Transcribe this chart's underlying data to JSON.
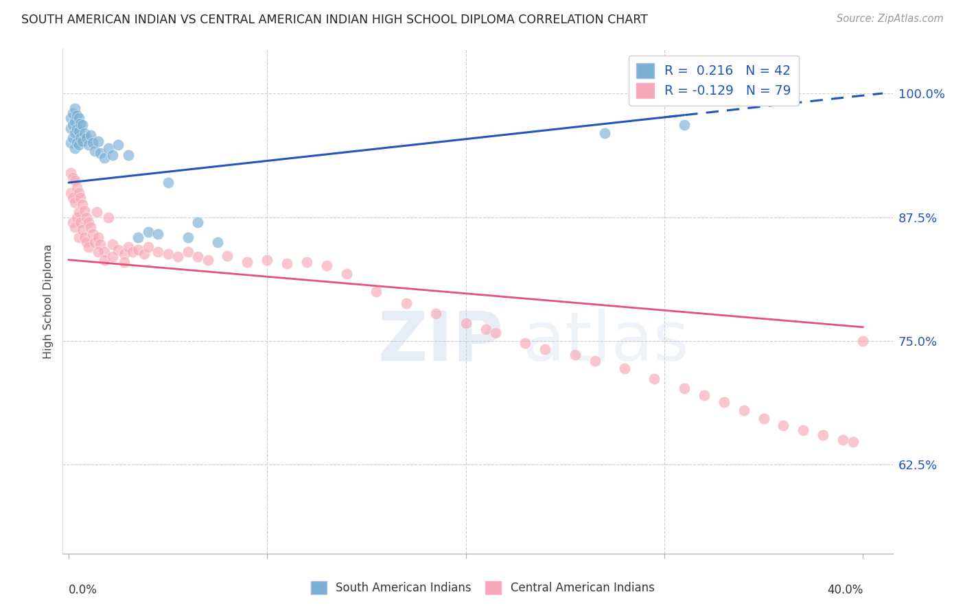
{
  "title": "SOUTH AMERICAN INDIAN VS CENTRAL AMERICAN INDIAN HIGH SCHOOL DIPLOMA CORRELATION CHART",
  "source": "Source: ZipAtlas.com",
  "ylabel": "High School Diploma",
  "yaxis_ticks": [
    0.625,
    0.75,
    0.875,
    1.0
  ],
  "yaxis_labels": [
    "62.5%",
    "75.0%",
    "87.5%",
    "100.0%"
  ],
  "xlim": [
    -0.003,
    0.415
  ],
  "ylim": [
    0.535,
    1.045
  ],
  "blue_color": "#7aafd4",
  "pink_color": "#f7a8b8",
  "blue_line_color": "#2255bb",
  "pink_line_color": "#e8507a",
  "blue_scatter_edge": "#5588bb",
  "pink_scatter_edge": "#e07090",
  "blue_line_intercept": 0.91,
  "blue_line_slope": 0.22,
  "pink_line_intercept": 0.832,
  "pink_line_slope": -0.17,
  "south_american_x": [
    0.001,
    0.001,
    0.001,
    0.002,
    0.002,
    0.002,
    0.003,
    0.003,
    0.003,
    0.003,
    0.004,
    0.004,
    0.004,
    0.005,
    0.005,
    0.005,
    0.006,
    0.006,
    0.007,
    0.007,
    0.008,
    0.009,
    0.01,
    0.011,
    0.012,
    0.013,
    0.015,
    0.016,
    0.018,
    0.02,
    0.022,
    0.025,
    0.03,
    0.035,
    0.04,
    0.045,
    0.05,
    0.06,
    0.065,
    0.075,
    0.27,
    0.31
  ],
  "south_american_y": [
    0.975,
    0.965,
    0.95,
    0.98,
    0.968,
    0.955,
    0.985,
    0.972,
    0.96,
    0.945,
    0.978,
    0.964,
    0.95,
    0.975,
    0.962,
    0.948,
    0.97,
    0.955,
    0.968,
    0.952,
    0.96,
    0.955,
    0.948,
    0.958,
    0.95,
    0.942,
    0.952,
    0.94,
    0.935,
    0.945,
    0.938,
    0.948,
    0.938,
    0.855,
    0.86,
    0.858,
    0.91,
    0.855,
    0.87,
    0.85,
    0.96,
    0.968
  ],
  "central_american_x": [
    0.001,
    0.001,
    0.002,
    0.002,
    0.002,
    0.003,
    0.003,
    0.003,
    0.004,
    0.004,
    0.005,
    0.005,
    0.005,
    0.006,
    0.006,
    0.007,
    0.007,
    0.008,
    0.008,
    0.009,
    0.009,
    0.01,
    0.01,
    0.011,
    0.012,
    0.013,
    0.014,
    0.015,
    0.016,
    0.018,
    0.02,
    0.022,
    0.025,
    0.028,
    0.03,
    0.032,
    0.035,
    0.038,
    0.04,
    0.045,
    0.05,
    0.055,
    0.06,
    0.065,
    0.07,
    0.08,
    0.09,
    0.1,
    0.11,
    0.12,
    0.13,
    0.14,
    0.155,
    0.17,
    0.185,
    0.2,
    0.21,
    0.215,
    0.23,
    0.24,
    0.255,
    0.265,
    0.28,
    0.295,
    0.31,
    0.32,
    0.33,
    0.34,
    0.35,
    0.36,
    0.37,
    0.38,
    0.39,
    0.395,
    0.4,
    0.015,
    0.018,
    0.022,
    0.028
  ],
  "central_american_y": [
    0.92,
    0.9,
    0.915,
    0.895,
    0.87,
    0.912,
    0.89,
    0.865,
    0.905,
    0.875,
    0.9,
    0.88,
    0.855,
    0.895,
    0.87,
    0.888,
    0.862,
    0.882,
    0.855,
    0.875,
    0.85,
    0.87,
    0.845,
    0.865,
    0.858,
    0.85,
    0.88,
    0.855,
    0.848,
    0.84,
    0.875,
    0.848,
    0.842,
    0.838,
    0.845,
    0.84,
    0.842,
    0.838,
    0.845,
    0.84,
    0.838,
    0.835,
    0.84,
    0.835,
    0.832,
    0.836,
    0.83,
    0.832,
    0.828,
    0.83,
    0.826,
    0.818,
    0.8,
    0.788,
    0.778,
    0.768,
    0.762,
    0.758,
    0.748,
    0.742,
    0.736,
    0.73,
    0.722,
    0.712,
    0.702,
    0.695,
    0.688,
    0.68,
    0.672,
    0.665,
    0.66,
    0.655,
    0.65,
    0.648,
    0.75,
    0.84,
    0.832,
    0.835,
    0.83
  ]
}
